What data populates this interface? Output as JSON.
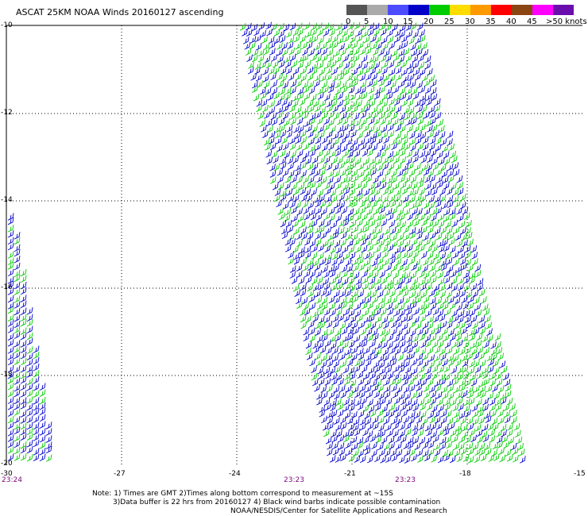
{
  "title": "ASCAT 25KM NOAA Winds 20160127 ascending",
  "legend": {
    "labels": [
      "0",
      "5",
      "10",
      "15",
      "20",
      "25",
      "30",
      "35",
      "40",
      "45",
      ">50 knots"
    ],
    "colors": [
      "#555555",
      "#aaaaaa",
      "#4b4bff",
      "#0000c8",
      "#00cc00",
      "#ffdd00",
      "#ff9900",
      "#ff0000",
      "#8b4513",
      "#ff00ff",
      "#6a0dad"
    ]
  },
  "map": {
    "lat_labels": [
      "-10",
      "-12",
      "-14",
      "-16",
      "-18",
      "-20"
    ],
    "lon_labels": [
      "-30",
      "-27",
      "-24",
      "-21",
      "-18",
      "-15"
    ],
    "time_labels": [
      "23:24",
      "23:23",
      "23:23"
    ]
  },
  "notes": [
    "Note: 1) Times are GMT 2)Times along bottom correspond to measurement at ~15S",
    "3)Data buffer is 22 hrs from 20160127 4) Black wind barbs indicate possible contamination",
    "NOAA/NESDIS/Center for Satellite Applications and Research"
  ]
}
